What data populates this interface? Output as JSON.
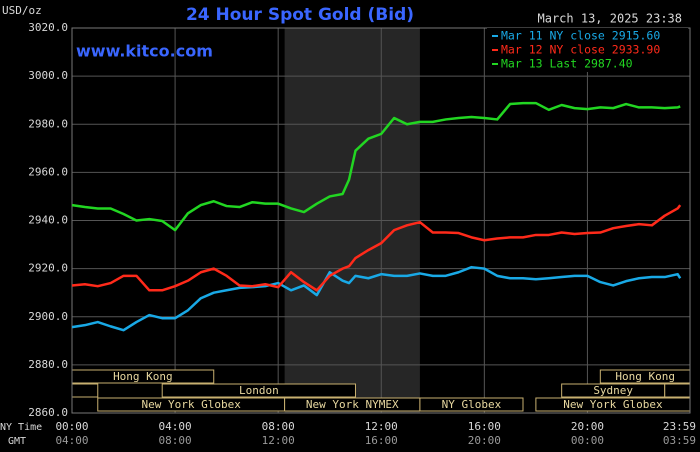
{
  "chart_data": {
    "type": "line",
    "title": "24 Hour Spot Gold (Bid)",
    "y_unit": "USD/oz",
    "timestamp": "March 13, 2025 23:38",
    "source": "www.kitco.com",
    "x_row_labels": [
      "NY Time",
      "GMT"
    ],
    "xlim": [
      0,
      23.98
    ],
    "ylim": [
      2860,
      3020
    ],
    "xticks": [
      {
        "value": 0,
        "label": "00:00"
      },
      {
        "value": 4,
        "label": "04:00"
      },
      {
        "value": 8,
        "label": "08:00"
      },
      {
        "value": 12,
        "label": "12:00"
      },
      {
        "value": 16,
        "label": "16:00"
      },
      {
        "value": 20,
        "label": "20:00"
      },
      {
        "value": 23.98,
        "label": "23:59"
      }
    ],
    "x2ticks": [
      {
        "value": 0,
        "label": "04:00"
      },
      {
        "value": 4,
        "label": "08:00"
      },
      {
        "value": 8,
        "label": "12:00"
      },
      {
        "value": 12,
        "label": "16:00"
      },
      {
        "value": 16,
        "label": "20:00"
      },
      {
        "value": 20,
        "label": "00:00"
      },
      {
        "value": 23.98,
        "label": "03:59"
      }
    ],
    "yticks": [
      {
        "value": 2860,
        "label": "2860.0"
      },
      {
        "value": 2880,
        "label": "2880.0"
      },
      {
        "value": 2900,
        "label": "2900.0"
      },
      {
        "value": 2920,
        "label": "2920.0"
      },
      {
        "value": 2940,
        "label": "2940.0"
      },
      {
        "value": 2960,
        "label": "2960.0"
      },
      {
        "value": 2980,
        "label": "2980.0"
      },
      {
        "value": 3000,
        "label": "3000.0"
      },
      {
        "value": 3020,
        "label": "3020.0"
      }
    ],
    "grid": true,
    "highlight": [
      8.25,
      13.5
    ],
    "sessions": [
      {
        "row": 0,
        "start": 0,
        "end": 5.5,
        "label": "Hong Kong"
      },
      {
        "row": 0,
        "start": 20.5,
        "end": 23.98,
        "label": "Hong Kong"
      },
      {
        "row": 1,
        "start": 0,
        "end": 1
      },
      {
        "row": 1,
        "start": 3.5,
        "end": 11,
        "label": "London"
      },
      {
        "row": 1,
        "start": 19,
        "end": 23,
        "label": "Sydney"
      },
      {
        "row": 1,
        "start": 23,
        "end": 23.98
      },
      {
        "row": 2,
        "start": 1,
        "end": 8.25,
        "label": "New York Globex"
      },
      {
        "row": 2,
        "start": 8.25,
        "end": 13.5,
        "label": "New York NYMEX"
      },
      {
        "row": 2,
        "start": 13.5,
        "end": 17.5,
        "label": "NY Globex"
      },
      {
        "row": 2,
        "start": 18,
        "end": 23.98,
        "label": "New York Globex"
      }
    ],
    "legend_position": "upper right",
    "x": [
      0,
      0.5,
      1,
      1.5,
      2,
      2.5,
      3,
      3.5,
      4,
      4.5,
      5,
      5.5,
      6,
      6.5,
      7,
      7.5,
      8,
      8.5,
      9,
      9.5,
      10,
      10.5,
      10.75,
      11,
      11.5,
      12,
      12.5,
      13,
      13.5,
      14,
      14.5,
      15,
      15.5,
      16,
      16.5,
      17,
      17.5,
      18,
      18.5,
      19,
      19.5,
      20,
      20.5,
      21,
      21.5,
      22,
      22.5,
      23,
      23.5,
      23.6
    ],
    "series": [
      {
        "name": "Mar 11 NY close 2915.60",
        "color": "#19a9e6",
        "values": [
          2895.7,
          2896.5,
          2897.8,
          2896,
          2894.4,
          2897.8,
          2900.7,
          2899.4,
          2899.4,
          2902.7,
          2907.7,
          2910,
          2911,
          2912,
          2912.3,
          2912.7,
          2914,
          2911,
          2913,
          2909,
          2918.5,
          2915,
          2914,
          2917,
          2916,
          2917.7,
          2917,
          2917,
          2918,
          2917,
          2917,
          2918.5,
          2920.6,
          2920,
          2917,
          2916,
          2916,
          2915.6,
          2916,
          2916.5,
          2917,
          2917,
          2914.4,
          2913,
          2914.8,
          2916,
          2916.5,
          2916.5,
          2917.7,
          2916
        ]
      },
      {
        "name": "Mar 12 NY close 2933.90",
        "color": "#ff2a1a",
        "values": [
          2913,
          2913.5,
          2912.7,
          2914,
          2917,
          2917,
          2911,
          2911,
          2912.7,
          2915,
          2918.5,
          2920,
          2917,
          2913,
          2912.7,
          2913.5,
          2912.3,
          2918.5,
          2914.4,
          2911,
          2917,
          2920,
          2921,
          2924.4,
          2927.7,
          2930.6,
          2936,
          2938,
          2939.3,
          2935,
          2935,
          2934.8,
          2933,
          2931.8,
          2932.5,
          2933,
          2933,
          2934,
          2934,
          2935,
          2934.4,
          2934.8,
          2935,
          2936.8,
          2937.7,
          2938.5,
          2938,
          2942,
          2945,
          2946.4
        ]
      },
      {
        "name": "Mar 13 Last 2987.40",
        "color": "#22d622",
        "values": [
          2946.4,
          2945.6,
          2945,
          2945,
          2942.7,
          2940,
          2940.6,
          2939.8,
          2936,
          2943,
          2946.4,
          2948,
          2946,
          2945.6,
          2947.6,
          2947,
          2947,
          2945,
          2943.5,
          2947,
          2950,
          2951,
          2957,
          2969,
          2974,
          2976,
          2982.6,
          2980,
          2981,
          2981,
          2982,
          2982.6,
          2983,
          2982.6,
          2982,
          2988.4,
          2988.8,
          2988.8,
          2986,
          2988,
          2986.7,
          2986.3,
          2987,
          2986.7,
          2988.4,
          2987,
          2987,
          2986.7,
          2987,
          2987.4
        ]
      }
    ]
  }
}
